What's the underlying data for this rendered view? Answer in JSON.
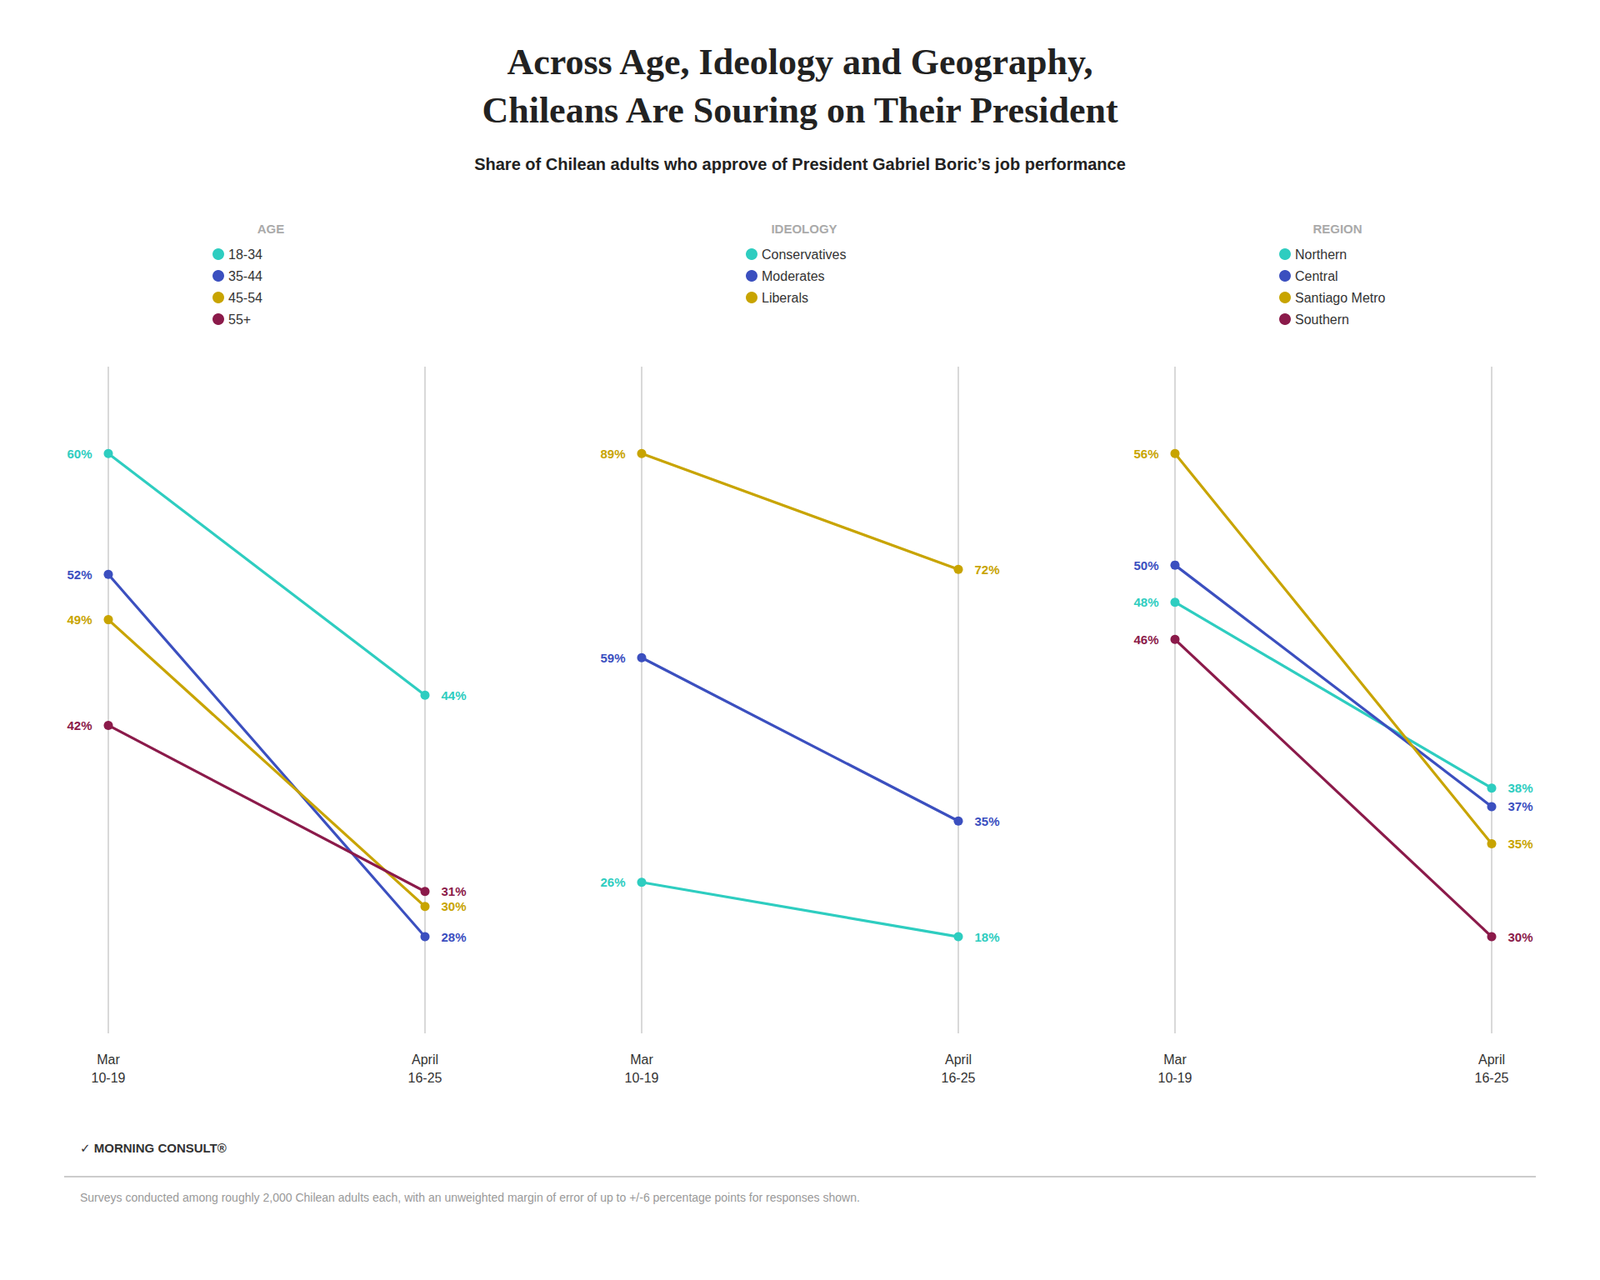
{
  "title": "Across Age, Ideology and Geography,\nChileans Are Souring on Their President",
  "subtitle": "Share of Chilean adults who approve of President Gabriel Boric’s job performance",
  "annotations": [
    "✓ MORNING CONSULT®",
    "Surveys conducted among roughly 2,000 Chilean adults each, with an unweighted margin of error of up to +/-6 percentage points for responses shown."
  ],
  "chart_data": [
    {
      "type": "line",
      "title": "AGE",
      "categories": [
        "Mar\n10-19",
        "April\n16-25"
      ],
      "series": [
        {
          "name": "18-34",
          "color": "#2ECDC0",
          "values": [
            60,
            44
          ],
          "value_labels": [
            "60%",
            "44%"
          ]
        },
        {
          "name": "35-44",
          "color": "#3B4FBF",
          "values": [
            52,
            28
          ],
          "value_labels": [
            "52%",
            "28%"
          ]
        },
        {
          "name": "45-54",
          "color": "#C8A400",
          "values": [
            49,
            30
          ],
          "value_labels": [
            "49%",
            "30%"
          ]
        },
        {
          "name": "55+",
          "color": "#8B1A4A",
          "values": [
            42,
            31
          ],
          "value_labels": [
            "42%",
            "31%"
          ]
        }
      ],
      "ylim": [
        21.6,
        65.76
      ],
      "tick_labels": "x",
      "grid": false,
      "data_labels": true,
      "legend": "top"
    },
    {
      "type": "line",
      "title": "IDEOLOGY",
      "categories": [
        "Mar\n10-19",
        "April\n16-25"
      ],
      "series": [
        {
          "name": "Conservatives",
          "color": "#2ECDC0",
          "values": [
            26,
            18
          ],
          "value_labels": [
            "26%",
            "18%"
          ]
        },
        {
          "name": "Moderates",
          "color": "#3B4FBF",
          "values": [
            59,
            35
          ],
          "value_labels": [
            "59%",
            "35%"
          ]
        },
        {
          "name": "Liberals",
          "color": "#C8A400",
          "values": [
            89,
            72
          ],
          "value_labels": [
            "89%",
            "72%"
          ]
        }
      ],
      "ylim": [
        3.8,
        101.78
      ],
      "tick_labels": "x",
      "grid": false,
      "data_labels": true,
      "legend": "top"
    },
    {
      "type": "line",
      "title": "REGION",
      "categories": [
        "Mar\n10-19",
        "April\n16-25"
      ],
      "series": [
        {
          "name": "Northern",
          "color": "#2ECDC0",
          "values": [
            48,
            38
          ],
          "value_labels": [
            "48%",
            "38%"
          ]
        },
        {
          "name": "Central",
          "color": "#3B4FBF",
          "values": [
            50,
            37
          ],
          "value_labels": [
            "50%",
            "37%"
          ]
        },
        {
          "name": "Santiago Metro",
          "color": "#C8A400",
          "values": [
            56,
            35
          ],
          "value_labels": [
            "56%",
            "35%"
          ]
        },
        {
          "name": "Southern",
          "color": "#8B1A4A",
          "values": [
            46,
            30
          ],
          "value_labels": [
            "46%",
            "30%"
          ]
        }
      ],
      "ylim": [
        24.8,
        60.68
      ],
      "tick_labels": "x",
      "grid": false,
      "data_labels": true,
      "legend": "top"
    }
  ]
}
